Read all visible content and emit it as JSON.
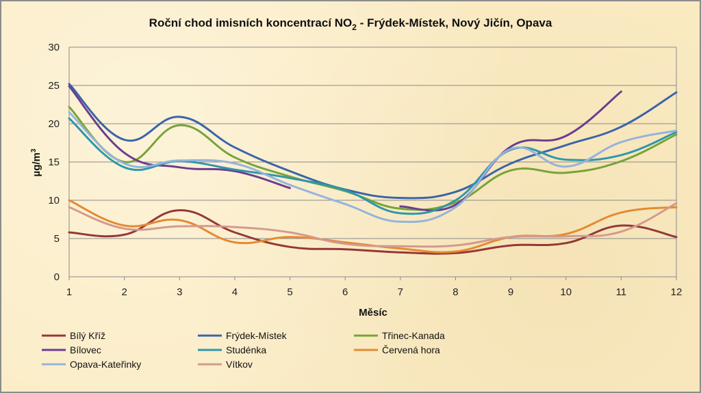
{
  "chart_data": {
    "type": "line",
    "title": {
      "main": "Roční chod imisních koncentrací NO",
      "sub": "2",
      "rest": " - Frýdek-Místek, Nový Jičín, Opava"
    },
    "xlabel": "Měsíc",
    "ylabel": {
      "main": "µg/m",
      "sup": "3"
    },
    "ylim": [
      0,
      30
    ],
    "yticks": [
      0,
      5,
      10,
      15,
      20,
      25,
      30
    ],
    "x": [
      1,
      2,
      3,
      4,
      5,
      6,
      7,
      8,
      9,
      10,
      11,
      12
    ],
    "grid": true,
    "legend_position": "bottom",
    "series": [
      {
        "name": "Bílý Kříž",
        "color": "#953735",
        "x": [
          1,
          2,
          3,
          4,
          5,
          6,
          7,
          8,
          9,
          10,
          11,
          12
        ],
        "values": [
          5.8,
          5.5,
          8.7,
          5.8,
          3.9,
          3.6,
          3.2,
          3.1,
          4.1,
          4.4,
          6.7,
          5.2
        ]
      },
      {
        "name": "Frýdek-Místek",
        "color": "#3b64a8",
        "x": [
          1,
          2,
          3,
          4,
          5,
          6,
          7,
          8,
          9,
          10,
          11,
          12
        ],
        "values": [
          25.2,
          17.9,
          20.9,
          16.9,
          13.8,
          11.4,
          10.3,
          11.1,
          14.8,
          17.2,
          19.6,
          24.1
        ]
      },
      {
        "name": "Třinec-Kanada",
        "color": "#77a33a",
        "x": [
          1,
          2,
          3,
          4,
          5,
          6,
          7,
          8,
          9,
          10,
          11,
          12
        ],
        "values": [
          22.2,
          15.0,
          19.8,
          15.6,
          13.1,
          11.2,
          8.9,
          9.7,
          13.9,
          13.6,
          15.1,
          18.6
        ]
      },
      {
        "name": "Bílovec",
        "color": "#6b3d8f",
        "x": [
          1,
          2,
          3,
          4,
          5,
          7,
          8,
          9,
          10,
          11
        ],
        "values": [
          24.9,
          16.2,
          14.3,
          13.8,
          11.6,
          9.2,
          9.4,
          17.0,
          18.4,
          24.2
        ]
      },
      {
        "name": "Studénka",
        "color": "#2e97aa",
        "x": [
          1,
          2,
          3,
          4,
          5,
          6,
          7,
          8,
          9,
          10,
          11,
          12
        ],
        "values": [
          20.7,
          14.3,
          15.1,
          14.0,
          12.9,
          11.3,
          8.3,
          10.0,
          16.6,
          15.3,
          15.9,
          18.9
        ]
      },
      {
        "name": "Červená hora",
        "color": "#e48a32",
        "x": [
          1,
          2,
          3,
          4,
          5,
          6,
          7,
          8,
          9,
          10,
          11,
          12
        ],
        "values": [
          10.0,
          6.7,
          7.4,
          4.5,
          5.2,
          4.5,
          3.7,
          3.3,
          5.2,
          5.6,
          8.4,
          9.1
        ]
      },
      {
        "name": "Opava-Kateřinky",
        "color": "#95b3dc",
        "x": [
          1,
          2,
          3,
          4,
          5,
          6,
          7,
          8,
          9,
          10,
          11,
          12
        ],
        "values": [
          21.5,
          14.8,
          15.2,
          14.8,
          12.0,
          9.5,
          7.2,
          9.1,
          16.7,
          14.4,
          17.6,
          19.1
        ]
      },
      {
        "name": "Vítkov",
        "color": "#d39a8e",
        "x": [
          1,
          2,
          3,
          4,
          5,
          6,
          7,
          8,
          9,
          10,
          11,
          12
        ],
        "values": [
          9.1,
          6.3,
          6.6,
          6.5,
          5.8,
          4.3,
          4.0,
          4.1,
          5.2,
          5.3,
          5.9,
          9.6
        ]
      }
    ]
  }
}
